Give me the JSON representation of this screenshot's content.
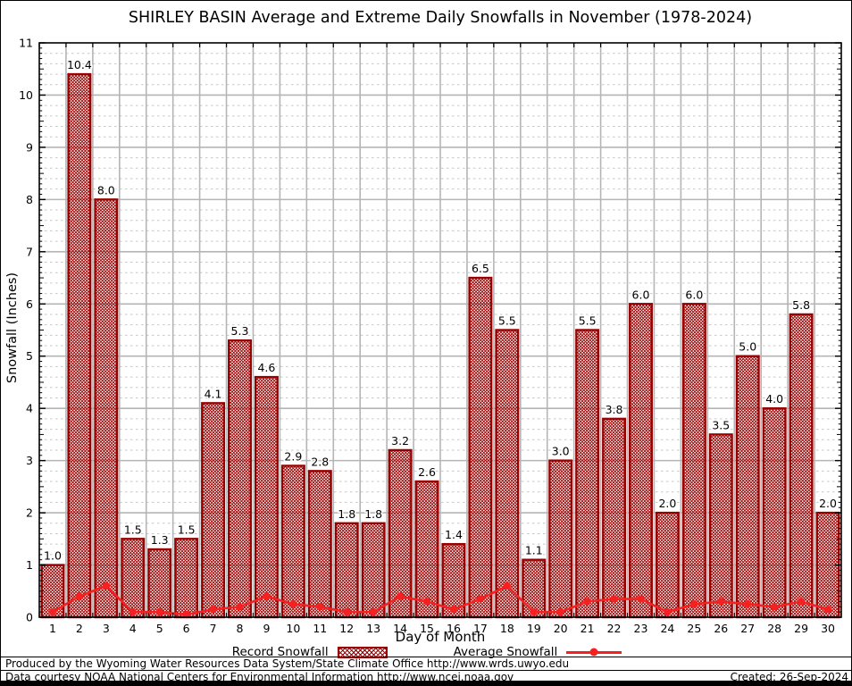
{
  "title": "SHIRLEY BASIN Average and Extreme Daily Snowfalls in November (1978-2024)",
  "chart_data": {
    "type": "bar",
    "title": "SHIRLEY BASIN Average and Extreme Daily Snowfalls in November (1978-2024)",
    "xlabel": "Day of Month",
    "ylabel": "Snowfall (Inches)",
    "ylim": [
      0,
      11
    ],
    "x": [
      1,
      2,
      3,
      4,
      5,
      6,
      7,
      8,
      9,
      10,
      11,
      12,
      13,
      14,
      15,
      16,
      17,
      18,
      19,
      20,
      21,
      22,
      23,
      24,
      25,
      26,
      27,
      28,
      29,
      30
    ],
    "grid": {
      "y_major_step": 1,
      "y_minor_step": 0.2,
      "x_major_step": 1,
      "grid_on": true
    },
    "legend_position": "bottom-center",
    "series": [
      {
        "name": "Record Snowfall",
        "render": "bar",
        "values": [
          1.0,
          10.4,
          8.0,
          1.5,
          1.3,
          1.5,
          4.1,
          5.3,
          4.6,
          2.9,
          2.8,
          1.8,
          1.8,
          3.2,
          2.6,
          1.4,
          6.5,
          5.5,
          1.1,
          3.0,
          5.5,
          3.8,
          6.0,
          2.0,
          6.0,
          3.5,
          5.0,
          4.0,
          5.8,
          2.0
        ],
        "labels": [
          "1.0",
          "10.4",
          "8.0",
          "1.5",
          "1.3",
          "1.5",
          "4.1",
          "5.3",
          "4.6",
          "2.9",
          "2.8",
          "1.8",
          "1.8",
          "3.2",
          "2.6",
          "1.4",
          "6.5",
          "5.5",
          "1.1",
          "3.0",
          "5.5",
          "3.8",
          "6.0",
          "2.0",
          "6.0",
          "3.5",
          "5.0",
          "4.0",
          "5.8",
          "2.0"
        ]
      },
      {
        "name": "Average Snowfall",
        "render": "line",
        "values": [
          0.1,
          0.4,
          0.6,
          0.1,
          0.1,
          0.05,
          0.15,
          0.2,
          0.4,
          0.25,
          0.2,
          0.1,
          0.1,
          0.4,
          0.3,
          0.15,
          0.35,
          0.6,
          0.1,
          0.1,
          0.3,
          0.35,
          0.35,
          0.1,
          0.25,
          0.3,
          0.25,
          0.2,
          0.3,
          0.15
        ]
      }
    ],
    "colors": {
      "bar_edge": "#990000",
      "bar_hatch": "#990000",
      "avg_line": "#f52020",
      "grid_major": "#b5b5b5",
      "grid_minor": "#c6c6c6",
      "axis": "#000000"
    }
  },
  "legend": {
    "record_label": "Record Snowfall",
    "average_label": "Average Snowfall"
  },
  "footer": {
    "line1": "Produced by the Wyoming Water Resources Data System/State Climate Office http://www.wrds.uwyo.edu",
    "line2": "Data courtesy NOAA National Centers for Environmental Information http://www.ncei.noaa.gov",
    "created": "Created: 26-Sep-2024"
  }
}
